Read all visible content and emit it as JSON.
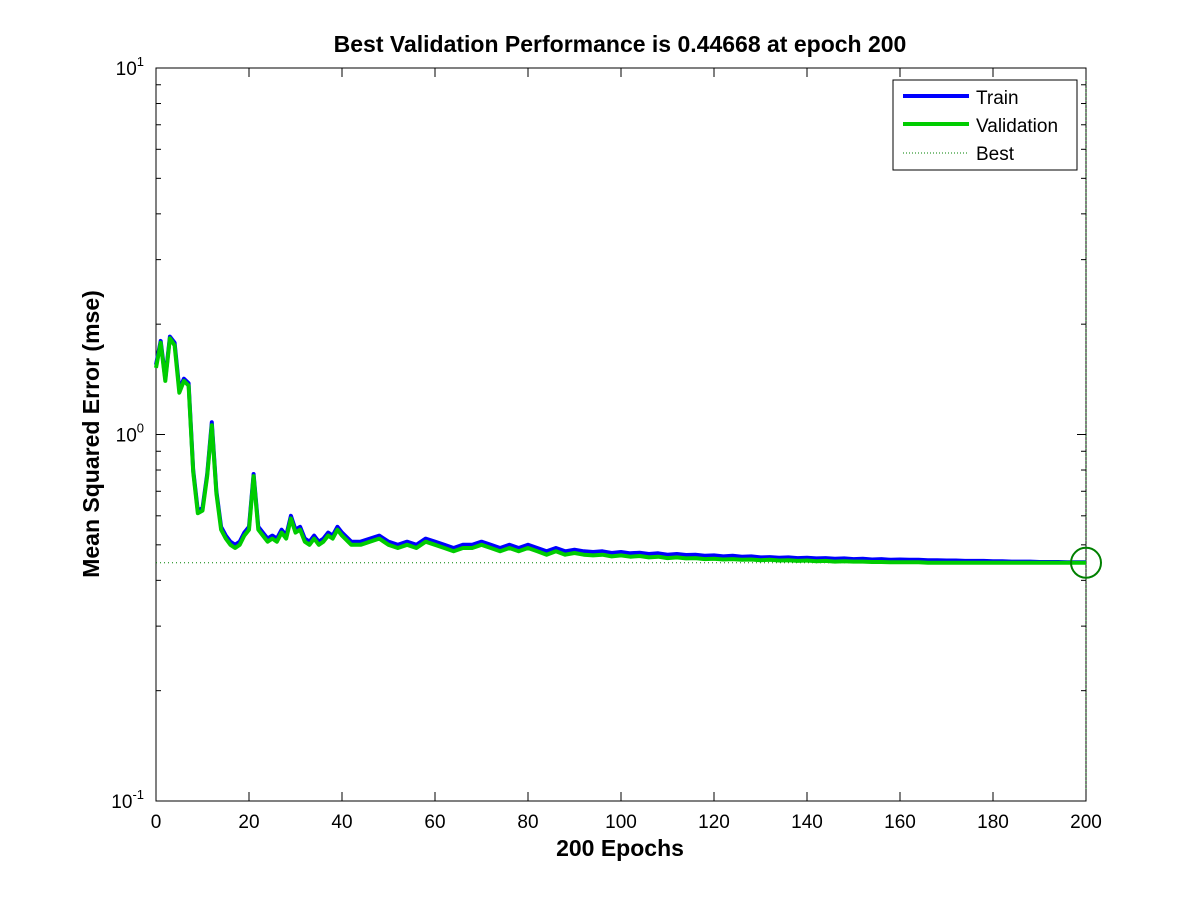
{
  "chart_data": {
    "type": "line",
    "title": "Best Validation Performance is 0.44668 at epoch 200",
    "xlabel": "200 Epochs",
    "ylabel": "Mean Squared Error  (mse)",
    "xlim": [
      0,
      200
    ],
    "ylim": [
      0.1,
      10
    ],
    "yscale": "log",
    "xticks": [
      0,
      20,
      40,
      60,
      80,
      100,
      120,
      140,
      160,
      180,
      200
    ],
    "yticks": [
      {
        "value": 0.1,
        "base": "10",
        "exp": "-1"
      },
      {
        "value": 1,
        "base": "10",
        "exp": "0"
      },
      {
        "value": 10,
        "base": "10",
        "exp": "1"
      }
    ],
    "grid": false,
    "legend": {
      "position": "top-right",
      "entries": [
        {
          "label": "Train",
          "color": "#0000ff",
          "style": "solid"
        },
        {
          "label": "Validation",
          "color": "#00cc00",
          "style": "solid"
        },
        {
          "label": "Best",
          "color": "#008000",
          "style": "dotted"
        }
      ]
    },
    "best": {
      "epoch": 200,
      "value": 0.44668,
      "color": "#008000"
    },
    "series": [
      {
        "name": "Train",
        "color": "#0000ff",
        "x": [
          0,
          1,
          2,
          3,
          4,
          5,
          6,
          7,
          8,
          9,
          10,
          11,
          12,
          13,
          14,
          15,
          16,
          17,
          18,
          19,
          20,
          21,
          22,
          23,
          24,
          25,
          26,
          27,
          28,
          29,
          30,
          31,
          32,
          33,
          34,
          35,
          36,
          37,
          38,
          39,
          40,
          42,
          44,
          46,
          48,
          50,
          52,
          54,
          56,
          58,
          60,
          62,
          64,
          66,
          68,
          70,
          72,
          74,
          76,
          78,
          80,
          82,
          84,
          86,
          88,
          90,
          92,
          94,
          96,
          98,
          100,
          102,
          104,
          106,
          108,
          110,
          112,
          114,
          116,
          118,
          120,
          122,
          124,
          126,
          128,
          130,
          132,
          134,
          136,
          138,
          140,
          142,
          144,
          146,
          148,
          150,
          152,
          154,
          156,
          158,
          160,
          162,
          164,
          166,
          168,
          170,
          172,
          174,
          176,
          178,
          180,
          182,
          184,
          186,
          188,
          190,
          192,
          194,
          196,
          198,
          200
        ],
        "y": [
          1.55,
          1.8,
          1.42,
          1.85,
          1.78,
          1.33,
          1.42,
          1.38,
          0.8,
          0.62,
          0.63,
          0.78,
          1.08,
          0.7,
          0.56,
          0.53,
          0.51,
          0.5,
          0.51,
          0.54,
          0.56,
          0.78,
          0.56,
          0.54,
          0.52,
          0.53,
          0.52,
          0.55,
          0.53,
          0.6,
          0.55,
          0.56,
          0.52,
          0.51,
          0.53,
          0.51,
          0.52,
          0.54,
          0.53,
          0.56,
          0.54,
          0.51,
          0.51,
          0.52,
          0.53,
          0.51,
          0.5,
          0.51,
          0.5,
          0.52,
          0.51,
          0.5,
          0.49,
          0.5,
          0.5,
          0.51,
          0.5,
          0.49,
          0.5,
          0.49,
          0.5,
          0.49,
          0.48,
          0.49,
          0.48,
          0.485,
          0.48,
          0.478,
          0.48,
          0.475,
          0.478,
          0.474,
          0.476,
          0.472,
          0.474,
          0.47,
          0.472,
          0.469,
          0.47,
          0.467,
          0.468,
          0.465,
          0.467,
          0.464,
          0.465,
          0.462,
          0.463,
          0.461,
          0.462,
          0.46,
          0.461,
          0.459,
          0.46,
          0.458,
          0.459,
          0.457,
          0.458,
          0.456,
          0.457,
          0.455,
          0.456,
          0.455,
          0.455,
          0.454,
          0.454,
          0.453,
          0.453,
          0.452,
          0.452,
          0.452,
          0.451,
          0.451,
          0.45,
          0.45,
          0.45,
          0.449,
          0.449,
          0.449,
          0.448,
          0.448,
          0.448
        ]
      },
      {
        "name": "Validation",
        "color": "#00cc00",
        "x": [
          0,
          1,
          2,
          3,
          4,
          5,
          6,
          7,
          8,
          9,
          10,
          11,
          12,
          13,
          14,
          15,
          16,
          17,
          18,
          19,
          20,
          21,
          22,
          23,
          24,
          25,
          26,
          27,
          28,
          29,
          30,
          31,
          32,
          33,
          34,
          35,
          36,
          37,
          38,
          39,
          40,
          42,
          44,
          46,
          48,
          50,
          52,
          54,
          56,
          58,
          60,
          62,
          64,
          66,
          68,
          70,
          72,
          74,
          76,
          78,
          80,
          82,
          84,
          86,
          88,
          90,
          92,
          94,
          96,
          98,
          100,
          102,
          104,
          106,
          108,
          110,
          112,
          114,
          116,
          118,
          120,
          122,
          124,
          126,
          128,
          130,
          132,
          134,
          136,
          138,
          140,
          142,
          144,
          146,
          148,
          150,
          152,
          154,
          156,
          158,
          160,
          162,
          164,
          166,
          168,
          170,
          172,
          174,
          176,
          178,
          180,
          182,
          184,
          186,
          188,
          190,
          192,
          194,
          196,
          198,
          200
        ],
        "y": [
          1.52,
          1.78,
          1.4,
          1.83,
          1.75,
          1.3,
          1.4,
          1.36,
          0.79,
          0.61,
          0.62,
          0.77,
          1.06,
          0.69,
          0.55,
          0.52,
          0.5,
          0.49,
          0.5,
          0.53,
          0.55,
          0.77,
          0.55,
          0.53,
          0.51,
          0.52,
          0.51,
          0.54,
          0.52,
          0.59,
          0.54,
          0.55,
          0.51,
          0.5,
          0.52,
          0.5,
          0.51,
          0.53,
          0.52,
          0.55,
          0.53,
          0.5,
          0.5,
          0.51,
          0.52,
          0.5,
          0.49,
          0.5,
          0.49,
          0.51,
          0.5,
          0.49,
          0.48,
          0.49,
          0.49,
          0.5,
          0.49,
          0.48,
          0.49,
          0.48,
          0.49,
          0.48,
          0.47,
          0.48,
          0.47,
          0.475,
          0.47,
          0.468,
          0.47,
          0.465,
          0.468,
          0.464,
          0.466,
          0.462,
          0.464,
          0.46,
          0.462,
          0.459,
          0.46,
          0.457,
          0.458,
          0.456,
          0.457,
          0.455,
          0.456,
          0.454,
          0.455,
          0.453,
          0.454,
          0.452,
          0.453,
          0.451,
          0.452,
          0.45,
          0.451,
          0.45,
          0.45,
          0.449,
          0.449,
          0.448,
          0.448,
          0.448,
          0.448,
          0.447,
          0.447,
          0.447,
          0.447,
          0.447,
          0.447,
          0.447,
          0.447,
          0.447,
          0.447,
          0.447,
          0.447,
          0.447,
          0.447,
          0.447,
          0.447,
          0.447,
          0.44668
        ]
      }
    ]
  }
}
